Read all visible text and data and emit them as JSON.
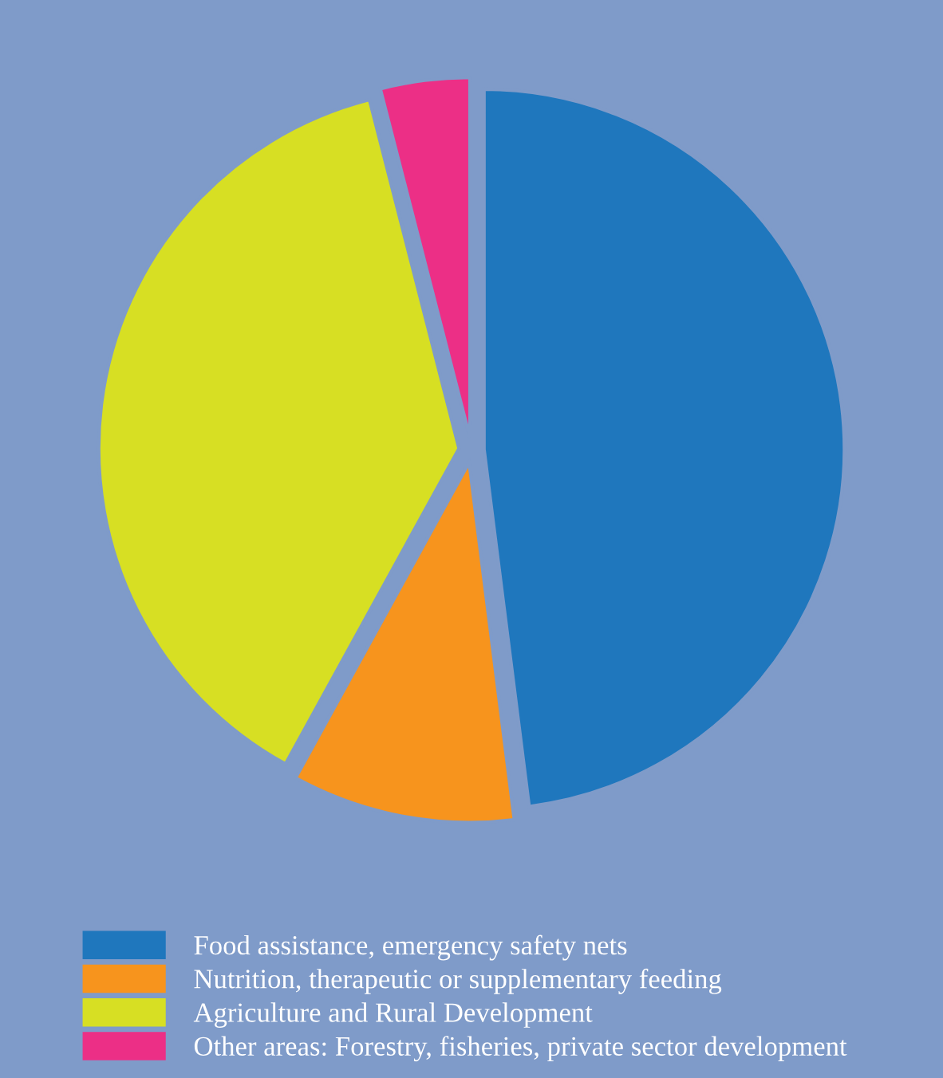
{
  "chart_data": {
    "type": "pie",
    "categories": [
      "Food assistance, emergency safety nets",
      "Nutrition, therapeutic or supplementary feeding",
      "Agriculture and Rural Development",
      "Other areas: Forestry, fisheries, private sector development"
    ],
    "values": [
      48,
      10,
      38,
      4
    ],
    "colors": [
      "#1f77bd",
      "#f7941d",
      "#d7df23",
      "#ec2f86"
    ],
    "legend": "bottom"
  }
}
